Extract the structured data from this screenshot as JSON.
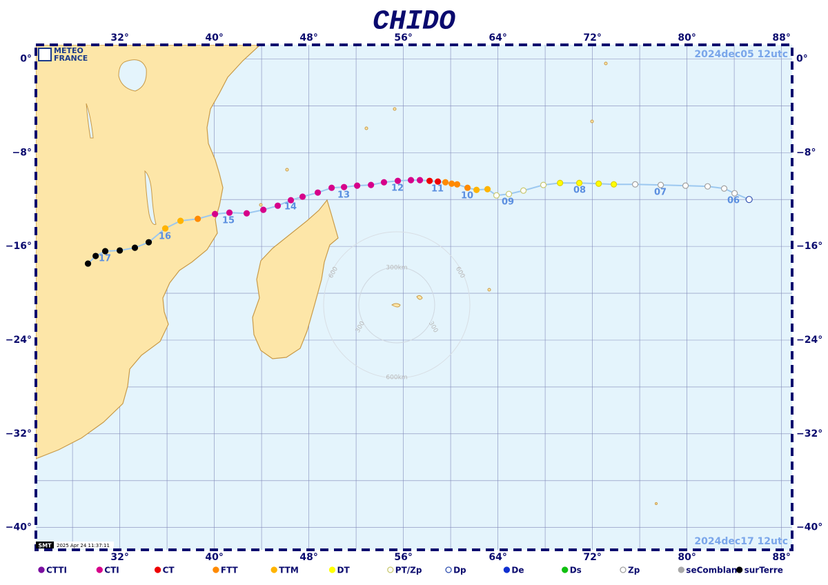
{
  "header": {
    "title": "CHIDO"
  },
  "logo": {
    "line1": "METEO",
    "line2": "FRANCE"
  },
  "stamps": {
    "start": "2024dec05  12utc",
    "end": "2024dec17  12utc",
    "footer_logo": "SMT",
    "footer": "2025 Apr 24 11:37:11"
  },
  "axes": {
    "xlim": [
      24.9,
      88.9
    ],
    "ylim": [
      -41.9,
      1.2
    ],
    "xticks": [
      {
        "value": 32,
        "label": "32°"
      },
      {
        "value": 40,
        "label": "40°"
      },
      {
        "value": 48,
        "label": "48°"
      },
      {
        "value": 56,
        "label": "56°"
      },
      {
        "value": 64,
        "label": "64°"
      },
      {
        "value": 72,
        "label": "72°"
      },
      {
        "value": 80,
        "label": "80°"
      },
      {
        "value": 88,
        "label": "88°"
      }
    ],
    "yticks": [
      {
        "value": 0,
        "label": "0°"
      },
      {
        "value": -8,
        "label": "−8°"
      },
      {
        "value": -16,
        "label": "−16°"
      },
      {
        "value": -24,
        "label": "−24°"
      },
      {
        "value": -32,
        "label": "−32°"
      },
      {
        "value": -40,
        "label": "−40°"
      }
    ]
  },
  "rings": {
    "inner_top": "300km",
    "outer_bottom": "600km",
    "inner_side": "300",
    "outer_side": "600"
  },
  "legend": [
    {
      "label": "CTTI",
      "color": "#7a0fa0",
      "filled": true
    },
    {
      "label": "CTI",
      "color": "#d6008a",
      "filled": true
    },
    {
      "label": "CT",
      "color": "#ee0000",
      "filled": true
    },
    {
      "label": "FTT",
      "color": "#ff8a00",
      "filled": true
    },
    {
      "label": "TTM",
      "color": "#ffb400",
      "filled": true
    },
    {
      "label": "DT",
      "color": "#ffff00",
      "filled": true
    },
    {
      "label": "PT/Zp",
      "color": "#c8c870",
      "filled": false
    },
    {
      "label": "Dp",
      "color": "#3050b0",
      "filled": false
    },
    {
      "label": "De",
      "color": "#1030d0",
      "filled": true
    },
    {
      "label": "Ds",
      "color": "#10c010",
      "filled": true
    },
    {
      "label": "Zp",
      "color": "#a0a0a0",
      "filled": false
    },
    {
      "label": "seComblant",
      "color": "#a8a8a8",
      "filled": true
    },
    {
      "label": "surTerre",
      "color": "#000000",
      "filled": true
    }
  ],
  "track": {
    "color": "#9cc8f0",
    "points": [
      {
        "lon": 85.26,
        "lat": -12.0,
        "type": "Dp"
      },
      {
        "lon": 84.03,
        "lat": -11.47,
        "type": "Zp"
      },
      {
        "lon": 83.15,
        "lat": -11.06,
        "type": "Zp"
      },
      {
        "lon": 81.75,
        "lat": -10.88,
        "type": "Zp"
      },
      {
        "lon": 79.88,
        "lat": -10.82,
        "type": "Zp"
      },
      {
        "lon": 77.78,
        "lat": -10.76,
        "type": "Zp"
      },
      {
        "lon": 75.62,
        "lat": -10.71,
        "type": "Zp"
      },
      {
        "lon": 73.81,
        "lat": -10.71,
        "type": "DT"
      },
      {
        "lon": 72.53,
        "lat": -10.65,
        "type": "DT"
      },
      {
        "lon": 70.89,
        "lat": -10.59,
        "type": "DT"
      },
      {
        "lon": 69.26,
        "lat": -10.59,
        "type": "DT"
      },
      {
        "lon": 67.85,
        "lat": -10.76,
        "type": "PT/Zp"
      },
      {
        "lon": 66.16,
        "lat": -11.24,
        "type": "PT/Zp"
      },
      {
        "lon": 64.93,
        "lat": -11.53,
        "type": "PT/Zp"
      },
      {
        "lon": 63.88,
        "lat": -11.65,
        "type": "PT/Zp"
      },
      {
        "lon": 63.12,
        "lat": -11.12,
        "type": "TTM"
      },
      {
        "lon": 62.19,
        "lat": -11.18,
        "type": "TTM"
      },
      {
        "lon": 61.43,
        "lat": -11.0,
        "type": "FTT"
      },
      {
        "lon": 60.55,
        "lat": -10.71,
        "type": "FTT"
      },
      {
        "lon": 60.09,
        "lat": -10.65,
        "type": "FTT"
      },
      {
        "lon": 59.56,
        "lat": -10.53,
        "type": "FTT"
      },
      {
        "lon": 58.92,
        "lat": -10.47,
        "type": "CT"
      },
      {
        "lon": 58.22,
        "lat": -10.41,
        "type": "CT"
      },
      {
        "lon": 57.4,
        "lat": -10.35,
        "type": "CTI"
      },
      {
        "lon": 56.64,
        "lat": -10.35,
        "type": "CTI"
      },
      {
        "lon": 55.53,
        "lat": -10.41,
        "type": "CTI"
      },
      {
        "lon": 54.36,
        "lat": -10.53,
        "type": "CTI"
      },
      {
        "lon": 53.26,
        "lat": -10.76,
        "type": "CTI"
      },
      {
        "lon": 52.09,
        "lat": -10.82,
        "type": "CTI"
      },
      {
        "lon": 50.98,
        "lat": -10.94,
        "type": "CTI"
      },
      {
        "lon": 49.93,
        "lat": -11.0,
        "type": "CTI"
      },
      {
        "lon": 48.76,
        "lat": -11.41,
        "type": "CTI"
      },
      {
        "lon": 47.47,
        "lat": -11.76,
        "type": "CTI"
      },
      {
        "lon": 46.48,
        "lat": -12.06,
        "type": "CTI"
      },
      {
        "lon": 45.37,
        "lat": -12.53,
        "type": "CTI"
      },
      {
        "lon": 44.15,
        "lat": -12.88,
        "type": "CTI"
      },
      {
        "lon": 42.74,
        "lat": -13.18,
        "type": "CTI"
      },
      {
        "lon": 41.28,
        "lat": -13.12,
        "type": "CTI"
      },
      {
        "lon": 40.06,
        "lat": -13.24,
        "type": "CTI"
      },
      {
        "lon": 38.6,
        "lat": -13.65,
        "type": "FTT"
      },
      {
        "lon": 37.14,
        "lat": -13.82,
        "type": "TTM"
      },
      {
        "lon": 35.85,
        "lat": -14.47,
        "type": "TTM"
      },
      {
        "lon": 34.45,
        "lat": -15.65,
        "type": "surTerre"
      },
      {
        "lon": 33.28,
        "lat": -16.12,
        "type": "surTerre"
      },
      {
        "lon": 32.0,
        "lat": -16.35,
        "type": "surTerre"
      },
      {
        "lon": 30.77,
        "lat": -16.41,
        "type": "surTerre"
      },
      {
        "lon": 29.96,
        "lat": -16.82,
        "type": "surTerre"
      },
      {
        "lon": 29.31,
        "lat": -17.47,
        "type": "surTerre"
      }
    ],
    "day_labels": [
      "06",
      "07",
      "08",
      "09",
      "10",
      "11",
      "12",
      "13",
      "14",
      "15",
      "16",
      "17"
    ]
  }
}
